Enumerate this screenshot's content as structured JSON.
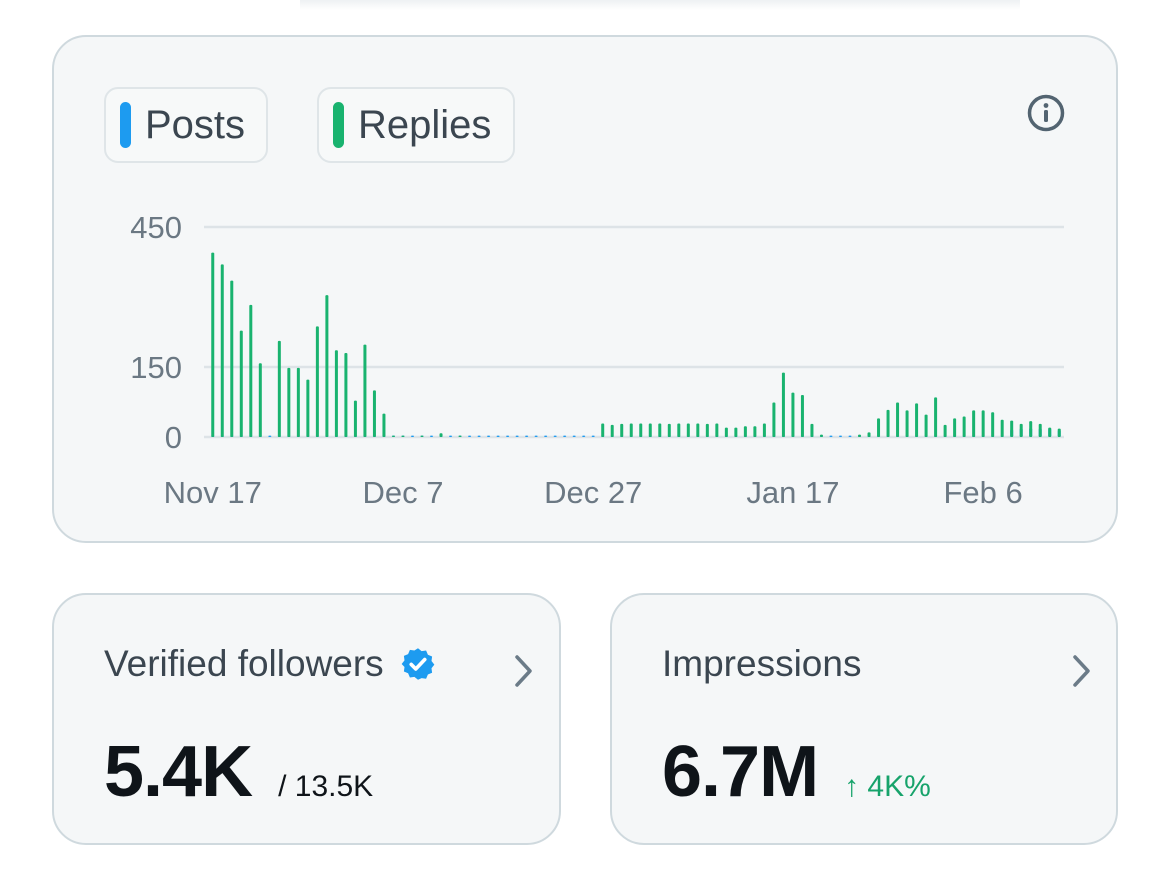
{
  "chart": {
    "legend": {
      "posts_label": "Posts",
      "replies_label": "Replies",
      "posts_color": "#1d9bf0",
      "replies_color": "#19b36f"
    },
    "info_icon": "info-circle-icon"
  },
  "chart_data": {
    "type": "bar",
    "title": "",
    "xlabel": "",
    "ylabel": "",
    "ylim": [
      0,
      450
    ],
    "yticks": [
      0,
      150,
      450
    ],
    "x_tick_labels": [
      {
        "index": 0,
        "label": "Nov 17"
      },
      {
        "index": 20,
        "label": "Dec 7"
      },
      {
        "index": 40,
        "label": "Dec 27"
      },
      {
        "index": 61,
        "label": "Jan 17"
      },
      {
        "index": 81,
        "label": "Feb 6"
      }
    ],
    "categories": [
      "Nov 17",
      "Nov 18",
      "Nov 19",
      "Nov 20",
      "Nov 21",
      "Nov 22",
      "Nov 23",
      "Nov 24",
      "Nov 25",
      "Nov 26",
      "Nov 27",
      "Nov 28",
      "Nov 29",
      "Nov 30",
      "Dec 1",
      "Dec 2",
      "Dec 3",
      "Dec 4",
      "Dec 5",
      "Dec 6",
      "Dec 7",
      "Dec 8",
      "Dec 9",
      "Dec 10",
      "Dec 11",
      "Dec 12",
      "Dec 13",
      "Dec 14",
      "Dec 15",
      "Dec 16",
      "Dec 17",
      "Dec 18",
      "Dec 19",
      "Dec 20",
      "Dec 21",
      "Dec 22",
      "Dec 23",
      "Dec 24",
      "Dec 25",
      "Dec 26",
      "Dec 27",
      "Dec 28",
      "Dec 29",
      "Dec 30",
      "Dec 31",
      "Jan 1",
      "Jan 2",
      "Jan 3",
      "Jan 4",
      "Jan 5",
      "Jan 6",
      "Jan 7",
      "Jan 8",
      "Jan 9",
      "Jan 10",
      "Jan 11",
      "Jan 12",
      "Jan 13",
      "Jan 14",
      "Jan 15",
      "Jan 16",
      "Jan 17",
      "Jan 18",
      "Jan 19",
      "Jan 20",
      "Jan 21",
      "Jan 22",
      "Jan 23",
      "Jan 24",
      "Jan 25",
      "Jan 26",
      "Jan 27",
      "Jan 28",
      "Jan 29",
      "Jan 30",
      "Jan 31",
      "Feb 1",
      "Feb 2",
      "Feb 3",
      "Feb 4",
      "Feb 5",
      "Feb 6",
      "Feb 7",
      "Feb 8",
      "Feb 9",
      "Feb 10",
      "Feb 11",
      "Feb 12",
      "Feb 13",
      "Feb 14"
    ],
    "series": [
      {
        "name": "Posts",
        "values": [
          3,
          3,
          3,
          3,
          3,
          3,
          3,
          3,
          3,
          3,
          3,
          3,
          3,
          3,
          3,
          3,
          3,
          3,
          3,
          3,
          3,
          3,
          3,
          3,
          3,
          3,
          3,
          3,
          3,
          3,
          3,
          3,
          3,
          3,
          3,
          3,
          3,
          3,
          3,
          3,
          3,
          3,
          3,
          3,
          3,
          3,
          3,
          3,
          3,
          3,
          3,
          3,
          3,
          3,
          3,
          3,
          3,
          3,
          3,
          3,
          3,
          3,
          3,
          3,
          3,
          3,
          3,
          3,
          3,
          3,
          3,
          3,
          3,
          3,
          3,
          3,
          3,
          3,
          3,
          3,
          3,
          3,
          3,
          3,
          3,
          3,
          3,
          3,
          3,
          3
        ]
      },
      {
        "name": "Replies",
        "values": [
          395,
          370,
          335,
          228,
          283,
          158,
          0,
          206,
          148,
          148,
          123,
          237,
          304,
          186,
          180,
          78,
          198,
          100,
          50,
          3,
          3,
          0,
          3,
          0,
          8,
          0,
          3,
          0,
          0,
          0,
          0,
          0,
          0,
          0,
          0,
          0,
          0,
          0,
          0,
          0,
          0,
          29,
          26,
          28,
          29,
          29,
          29,
          29,
          28,
          29,
          29,
          29,
          28,
          29,
          20,
          20,
          23,
          23,
          29,
          74,
          138,
          95,
          90,
          28,
          5,
          0,
          0,
          0,
          5,
          10,
          40,
          58,
          74,
          57,
          72,
          48,
          85,
          26,
          40,
          44,
          57,
          57,
          53,
          37,
          35,
          28,
          34,
          28,
          20,
          18
        ]
      }
    ],
    "blue_tail_values": [
      0,
      0,
      0,
      0,
      0,
      0,
      0,
      0,
      0,
      0,
      0,
      0,
      0,
      0,
      0,
      0,
      0,
      0,
      0,
      0,
      0,
      0,
      0,
      0,
      0,
      0,
      0,
      0,
      0,
      0,
      0,
      0,
      0,
      0,
      0,
      0,
      0,
      0,
      0,
      0,
      0,
      0,
      0,
      0,
      0,
      0,
      0,
      0,
      0,
      0,
      0,
      0,
      0,
      0,
      0,
      0,
      0,
      0,
      0,
      0,
      0,
      0,
      0,
      0,
      0,
      0,
      0,
      0,
      0,
      0,
      0,
      0,
      0,
      0,
      0,
      0,
      0,
      0,
      0,
      0,
      0,
      0,
      0,
      0,
      16,
      18,
      19,
      18,
      18,
      15
    ]
  },
  "followers": {
    "label": "Verified followers",
    "value": "5.4K",
    "total": "/ 13.5K",
    "verified_color": "#1d9bf0"
  },
  "impressions": {
    "label": "Impressions",
    "value": "6.7M",
    "change": "↑ 4K%",
    "change_color": "#17a36b"
  }
}
